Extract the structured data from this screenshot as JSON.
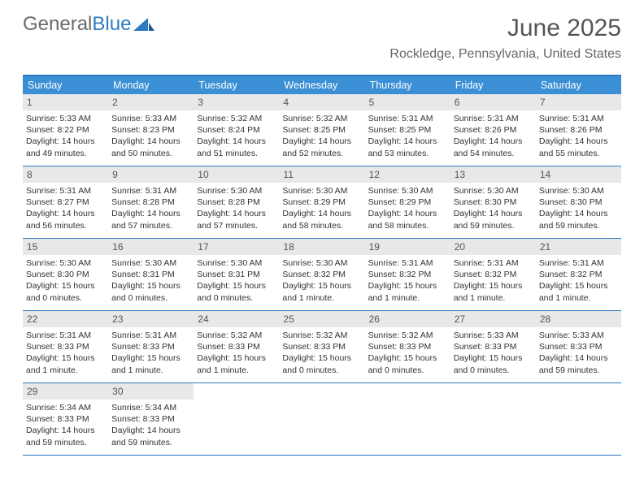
{
  "brand": {
    "part1": "General",
    "part2": "Blue"
  },
  "title": "June 2025",
  "location": "Rockledge, Pennsylvania, United States",
  "colors": {
    "header_bar": "#3b8fd4",
    "rule": "#2f7bbf",
    "daynum_bg": "#e8e8e8",
    "text": "#333333",
    "title_text": "#555555"
  },
  "dow": [
    "Sunday",
    "Monday",
    "Tuesday",
    "Wednesday",
    "Thursday",
    "Friday",
    "Saturday"
  ],
  "days": [
    {
      "n": "1",
      "sunrise": "5:33 AM",
      "sunset": "8:22 PM",
      "daylight": "14 hours and 49 minutes."
    },
    {
      "n": "2",
      "sunrise": "5:33 AM",
      "sunset": "8:23 PM",
      "daylight": "14 hours and 50 minutes."
    },
    {
      "n": "3",
      "sunrise": "5:32 AM",
      "sunset": "8:24 PM",
      "daylight": "14 hours and 51 minutes."
    },
    {
      "n": "4",
      "sunrise": "5:32 AM",
      "sunset": "8:25 PM",
      "daylight": "14 hours and 52 minutes."
    },
    {
      "n": "5",
      "sunrise": "5:31 AM",
      "sunset": "8:25 PM",
      "daylight": "14 hours and 53 minutes."
    },
    {
      "n": "6",
      "sunrise": "5:31 AM",
      "sunset": "8:26 PM",
      "daylight": "14 hours and 54 minutes."
    },
    {
      "n": "7",
      "sunrise": "5:31 AM",
      "sunset": "8:26 PM",
      "daylight": "14 hours and 55 minutes."
    },
    {
      "n": "8",
      "sunrise": "5:31 AM",
      "sunset": "8:27 PM",
      "daylight": "14 hours and 56 minutes."
    },
    {
      "n": "9",
      "sunrise": "5:31 AM",
      "sunset": "8:28 PM",
      "daylight": "14 hours and 57 minutes."
    },
    {
      "n": "10",
      "sunrise": "5:30 AM",
      "sunset": "8:28 PM",
      "daylight": "14 hours and 57 minutes."
    },
    {
      "n": "11",
      "sunrise": "5:30 AM",
      "sunset": "8:29 PM",
      "daylight": "14 hours and 58 minutes."
    },
    {
      "n": "12",
      "sunrise": "5:30 AM",
      "sunset": "8:29 PM",
      "daylight": "14 hours and 58 minutes."
    },
    {
      "n": "13",
      "sunrise": "5:30 AM",
      "sunset": "8:30 PM",
      "daylight": "14 hours and 59 minutes."
    },
    {
      "n": "14",
      "sunrise": "5:30 AM",
      "sunset": "8:30 PM",
      "daylight": "14 hours and 59 minutes."
    },
    {
      "n": "15",
      "sunrise": "5:30 AM",
      "sunset": "8:30 PM",
      "daylight": "15 hours and 0 minutes."
    },
    {
      "n": "16",
      "sunrise": "5:30 AM",
      "sunset": "8:31 PM",
      "daylight": "15 hours and 0 minutes."
    },
    {
      "n": "17",
      "sunrise": "5:30 AM",
      "sunset": "8:31 PM",
      "daylight": "15 hours and 0 minutes."
    },
    {
      "n": "18",
      "sunrise": "5:30 AM",
      "sunset": "8:32 PM",
      "daylight": "15 hours and 1 minute."
    },
    {
      "n": "19",
      "sunrise": "5:31 AM",
      "sunset": "8:32 PM",
      "daylight": "15 hours and 1 minute."
    },
    {
      "n": "20",
      "sunrise": "5:31 AM",
      "sunset": "8:32 PM",
      "daylight": "15 hours and 1 minute."
    },
    {
      "n": "21",
      "sunrise": "5:31 AM",
      "sunset": "8:32 PM",
      "daylight": "15 hours and 1 minute."
    },
    {
      "n": "22",
      "sunrise": "5:31 AM",
      "sunset": "8:33 PM",
      "daylight": "15 hours and 1 minute."
    },
    {
      "n": "23",
      "sunrise": "5:31 AM",
      "sunset": "8:33 PM",
      "daylight": "15 hours and 1 minute."
    },
    {
      "n": "24",
      "sunrise": "5:32 AM",
      "sunset": "8:33 PM",
      "daylight": "15 hours and 1 minute."
    },
    {
      "n": "25",
      "sunrise": "5:32 AM",
      "sunset": "8:33 PM",
      "daylight": "15 hours and 0 minutes."
    },
    {
      "n": "26",
      "sunrise": "5:32 AM",
      "sunset": "8:33 PM",
      "daylight": "15 hours and 0 minutes."
    },
    {
      "n": "27",
      "sunrise": "5:33 AM",
      "sunset": "8:33 PM",
      "daylight": "15 hours and 0 minutes."
    },
    {
      "n": "28",
      "sunrise": "5:33 AM",
      "sunset": "8:33 PM",
      "daylight": "14 hours and 59 minutes."
    },
    {
      "n": "29",
      "sunrise": "5:34 AM",
      "sunset": "8:33 PM",
      "daylight": "14 hours and 59 minutes."
    },
    {
      "n": "30",
      "sunrise": "5:34 AM",
      "sunset": "8:33 PM",
      "daylight": "14 hours and 59 minutes."
    }
  ],
  "labels": {
    "sunrise": "Sunrise: ",
    "sunset": "Sunset: ",
    "daylight": "Daylight: "
  },
  "layout": {
    "cols": 7,
    "rows": 5,
    "start_offset": 0,
    "trailing_empty": 5
  }
}
